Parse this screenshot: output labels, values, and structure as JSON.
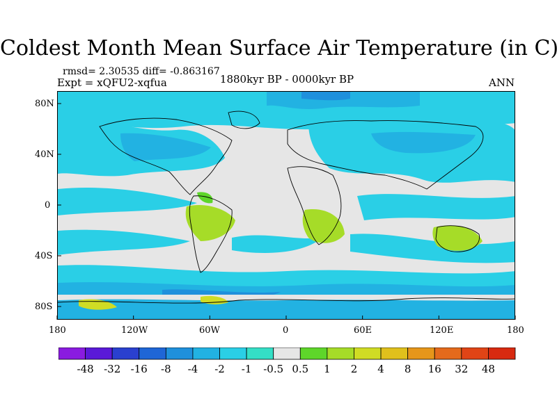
{
  "title": "Coldest Month Mean Surface Air Temperature (in C)",
  "stats": "rmsd= 2.30535 diff= -0.863167",
  "experiment": "Expt = xQFU2-xqfua",
  "period": "1880kyr BP - 0000kyr BP",
  "season": "ANN",
  "axes": {
    "x_ticks": [
      "180",
      "120W",
      "60W",
      "0",
      "60E",
      "120E",
      "180"
    ],
    "y_ticks": [
      "80N",
      "40N",
      "0",
      "40S",
      "80S"
    ]
  },
  "colorbar": {
    "labels": [
      "-48",
      "-32",
      "-16",
      "-8",
      "-4",
      "-2",
      "-1",
      "-0.5",
      "0.5",
      "1",
      "2",
      "4",
      "8",
      "16",
      "32",
      "48"
    ],
    "colors": [
      "#8a1be0",
      "#5a19d8",
      "#2a40cf",
      "#1f66d6",
      "#1f90dc",
      "#22b2e2",
      "#2acfe6",
      "#34dfc6",
      "#e6e6e6",
      "#5ed62a",
      "#a6dc28",
      "#d0dc24",
      "#e0c01c",
      "#e6961a",
      "#e46a1c",
      "#e04416",
      "#d82a10"
    ]
  },
  "colors": {
    "neutral": "#e6e6e6",
    "cool": "#2acfe6",
    "cooler": "#22b2e2",
    "warm": "#a6dc28",
    "blue": "#1f66d6"
  }
}
